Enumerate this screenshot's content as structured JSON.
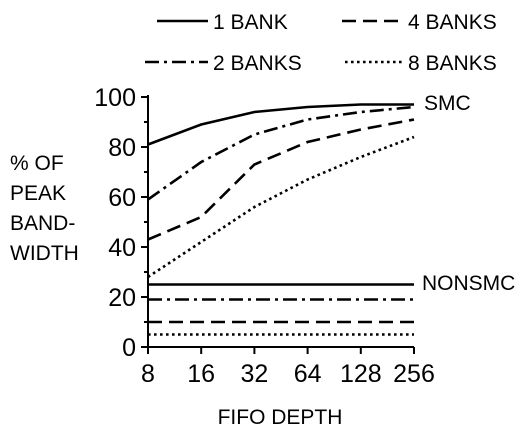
{
  "chart_data": {
    "type": "line",
    "xlabel": "FIFO DEPTH",
    "ylabel_lines": [
      "% OF",
      "PEAK",
      "BAND-",
      "WIDTH"
    ],
    "x_tick_labels": [
      "8",
      "16",
      "32",
      "64",
      "128",
      "256"
    ],
    "x_scale": "log2",
    "xlim": [
      8,
      256
    ],
    "ylim": [
      0,
      100
    ],
    "y_ticks": [
      0,
      20,
      40,
      60,
      80,
      100
    ],
    "grid": false,
    "legend_position": "top",
    "legend": [
      {
        "label": "1 BANK",
        "style": "solid"
      },
      {
        "label": "4 BANKS",
        "style": "dashed"
      },
      {
        "label": "2 BANKS",
        "style": "dashdot"
      },
      {
        "label": "8 BANKS",
        "style": "dotted"
      }
    ],
    "group_labels": [
      "SMC",
      "NONSMC"
    ],
    "x": [
      8,
      16,
      32,
      64,
      128,
      256
    ],
    "series": [
      {
        "group": "SMC",
        "banks": 1,
        "style": "solid",
        "values": [
          81,
          89,
          94,
          96,
          97,
          97
        ]
      },
      {
        "group": "SMC",
        "banks": 2,
        "style": "dashdot",
        "values": [
          59,
          74,
          85,
          91,
          94,
          96
        ]
      },
      {
        "group": "SMC",
        "banks": 4,
        "style": "dashed",
        "values": [
          43,
          52,
          73,
          82,
          87,
          91
        ]
      },
      {
        "group": "SMC",
        "banks": 8,
        "style": "dotted",
        "values": [
          28,
          42,
          56,
          67,
          76,
          84
        ]
      },
      {
        "group": "NONSMC",
        "banks": 1,
        "style": "solid",
        "values": [
          25,
          25,
          25,
          25,
          25,
          25
        ]
      },
      {
        "group": "NONSMC",
        "banks": 2,
        "style": "dashdot",
        "values": [
          19,
          19,
          19,
          19,
          19,
          19
        ]
      },
      {
        "group": "NONSMC",
        "banks": 4,
        "style": "dashed",
        "values": [
          10,
          10,
          10,
          10,
          10,
          10
        ]
      },
      {
        "group": "NONSMC",
        "banks": 8,
        "style": "dotted",
        "values": [
          5,
          5,
          5,
          5,
          5,
          5
        ]
      }
    ]
  }
}
